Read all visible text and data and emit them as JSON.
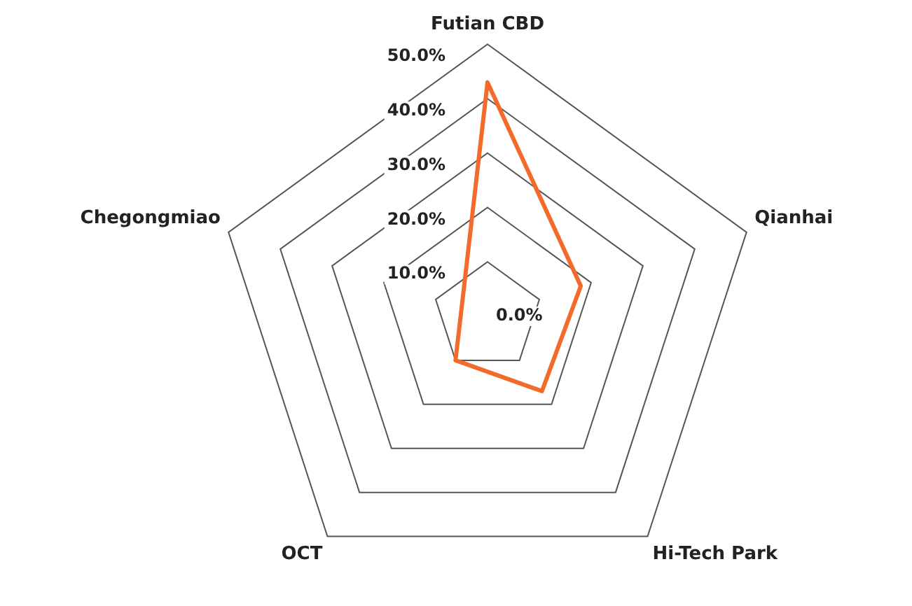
{
  "chart_data": {
    "type": "radar",
    "categories": [
      "Futian CBD",
      "Qianhai",
      "Hi-Tech Park",
      "OCT",
      "Chegongmiao"
    ],
    "series": [
      {
        "color": "#f26b2a",
        "values": [
          43,
          18,
          17,
          10,
          5
        ]
      }
    ],
    "ylim": [
      0,
      50
    ],
    "yticks": [
      {
        "value": 0,
        "label": "0.0%"
      },
      {
        "value": 10,
        "label": "10.0%"
      },
      {
        "value": 20,
        "label": "20.0%"
      },
      {
        "value": 30,
        "label": "30.0%"
      },
      {
        "value": 40,
        "label": "40.0%"
      },
      {
        "value": 50,
        "label": "50.0%"
      }
    ],
    "grid": true,
    "legend": false,
    "marker": "none"
  }
}
